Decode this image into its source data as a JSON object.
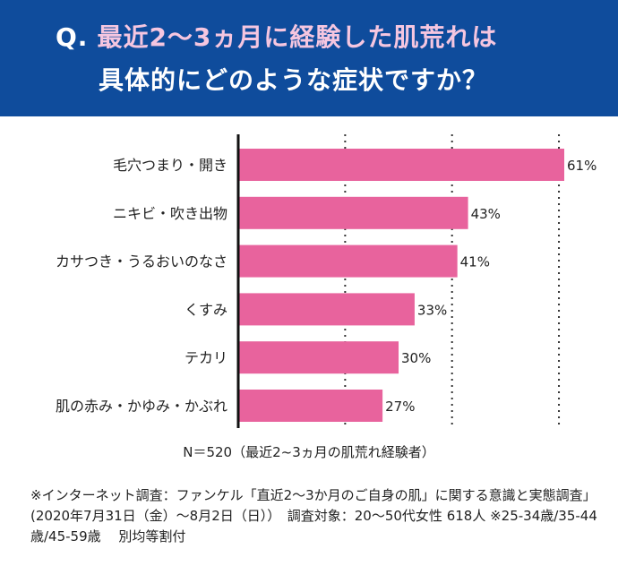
{
  "header": {
    "q_mark": "Q.",
    "line1": "最近2～3ヵ月に経験した肌荒れは",
    "line2": "具体的にどのような症状ですか？",
    "bg_color": "#0f4c9c",
    "highlight_color": "#f5c6e0"
  },
  "chart_data": {
    "type": "bar",
    "orientation": "horizontal",
    "categories": [
      "毛穴つまり・開き",
      "ニキビ・吹き出物",
      "カサつき・うるおいのなさ",
      "くすみ",
      "テカリ",
      "肌の赤み・かゆみ・かぶれ"
    ],
    "values": [
      61,
      43,
      41,
      33,
      30,
      27
    ],
    "value_labels": [
      "61%",
      "43%",
      "41%",
      "33%",
      "30%",
      "27%"
    ],
    "xlim": [
      0,
      61
    ],
    "gridlines": [
      20,
      40,
      60
    ],
    "grid": true,
    "bar_color": "#e8639d",
    "title": "",
    "xlabel": "",
    "ylabel": ""
  },
  "notes": {
    "sample": "N＝520（最近2~3ヵ月の肌荒れ経験者）",
    "footnote": "※インターネット調査：ファンケル「直近2～3か月のご自身の肌」に関する意識と実態調査」(2020年7月31日（金）～8月2日（日））　調査対象：20～50代女性 618人 ※25-34歳/35-44歳/45-59歳　 別均等割付"
  }
}
